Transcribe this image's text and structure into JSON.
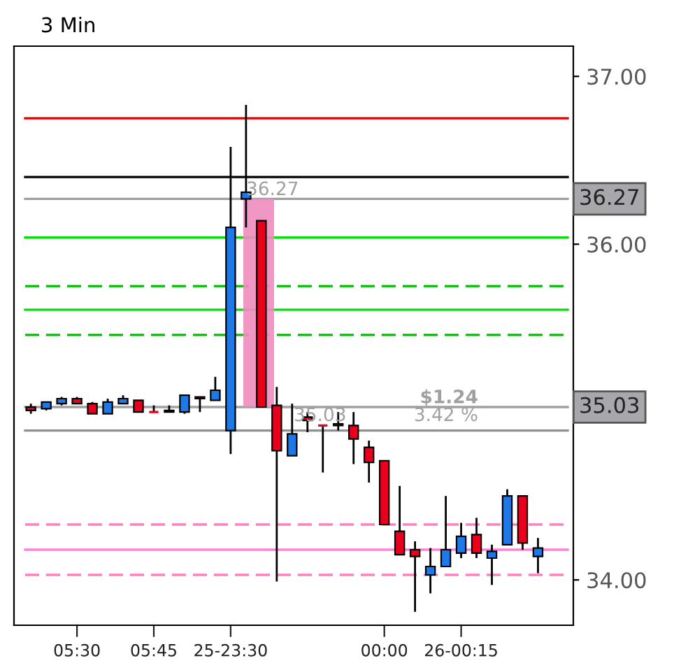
{
  "chart_data": {
    "type": "candlestick",
    "title": "3 Min",
    "categories": [
      null,
      null,
      null,
      "05:30",
      null,
      null,
      null,
      null,
      "05:45",
      null,
      null,
      null,
      null,
      "25-23:30",
      null,
      null,
      null,
      null,
      null,
      null,
      null,
      null,
      null,
      "00:00",
      null,
      null,
      null,
      null,
      "26-00:15",
      null,
      null,
      null,
      null,
      null
    ],
    "ohlc": [
      [
        35.03,
        35.05,
        34.99,
        35.01
      ],
      [
        35.02,
        35.06,
        35.01,
        35.06
      ],
      [
        35.05,
        35.09,
        35.04,
        35.08
      ],
      [
        35.08,
        35.09,
        35.05,
        35.05
      ],
      [
        35.05,
        35.06,
        34.99,
        34.99
      ],
      [
        34.99,
        35.08,
        34.99,
        35.06
      ],
      [
        35.05,
        35.1,
        35.05,
        35.08
      ],
      [
        35.07,
        35.07,
        35.0,
        35.0
      ],
      [
        35.0,
        35.04,
        35.0,
        35.0
      ],
      [
        35.01,
        35.04,
        35.0,
        35.0
      ],
      [
        35.0,
        35.1,
        34.99,
        35.1
      ],
      [
        35.09,
        35.09,
        35.0,
        35.08
      ],
      [
        35.07,
        35.21,
        35.07,
        35.13
      ],
      [
        34.89,
        36.58,
        34.75,
        36.1
      ],
      [
        36.27,
        36.83,
        36.1,
        36.31
      ],
      [
        36.14,
        36.14,
        35.03,
        35.03
      ],
      [
        35.04,
        35.15,
        33.99,
        34.77
      ],
      [
        34.74,
        35.05,
        34.74,
        34.87
      ],
      [
        34.97,
        35.0,
        34.88,
        34.95
      ],
      [
        34.92,
        34.92,
        34.64,
        34.92
      ],
      [
        34.92,
        35.0,
        34.89,
        34.93
      ],
      [
        34.92,
        35.0,
        34.69,
        34.84
      ],
      [
        34.79,
        34.83,
        34.58,
        34.7
      ],
      [
        34.71,
        34.71,
        34.33,
        34.33
      ],
      [
        34.29,
        34.56,
        34.15,
        34.15
      ],
      [
        34.18,
        34.23,
        33.81,
        34.14
      ],
      [
        34.03,
        34.19,
        33.92,
        34.08
      ],
      [
        34.08,
        34.5,
        34.08,
        34.18
      ],
      [
        34.16,
        34.34,
        34.13,
        34.26
      ],
      [
        34.27,
        34.37,
        34.13,
        34.16
      ],
      [
        34.13,
        34.21,
        33.97,
        34.17
      ],
      [
        34.21,
        34.54,
        34.21,
        34.5
      ],
      [
        34.5,
        34.5,
        34.18,
        34.22
      ],
      [
        34.14,
        34.25,
        34.04,
        34.19
      ]
    ],
    "colors": [
      "#e8001c",
      "#1e78e6",
      "#1e78e6",
      "#e8001c",
      "#e8001c",
      "#1e78e6",
      "#1e78e6",
      "#e8001c",
      "#e8001c",
      "#e8001c",
      "#1e78e6",
      "#e8001c",
      "#1e78e6",
      "#1e78e6",
      "#1e78e6",
      "#e8001c",
      "#e8001c",
      "#1e78e6",
      "#e8001c",
      "#e8001c",
      "#1e78e6",
      "#e8001c",
      "#e8001c",
      "#e8001c",
      "#e8001c",
      "#e8001c",
      "#1e78e6",
      "#1e78e6",
      "#1e78e6",
      "#e8001c",
      "#1e78e6",
      "#1e78e6",
      "#e8001c",
      "#1e78e6"
    ],
    "ylim": [
      33.73,
      37.18
    ],
    "yticks": [
      {
        "value": 37,
        "label": "37.00"
      },
      {
        "value": 36,
        "label": "36.00"
      },
      {
        "value": 34,
        "label": "34.00"
      }
    ],
    "ref_lines": [
      {
        "axis": "y",
        "value": 36.75,
        "color": "#e00000",
        "line_style": "solid"
      },
      {
        "axis": "y",
        "value": 36.4,
        "color": "#000000",
        "line_style": "solid"
      },
      {
        "axis": "y",
        "value": 36.27,
        "label": "36.27",
        "color": "#a0a0a0",
        "line_style": "solid"
      },
      {
        "axis": "y",
        "value": 36.04,
        "color": "#00e000",
        "line_style": "solid"
      },
      {
        "axis": "y",
        "value": 35.75,
        "color": "#00c000",
        "line_style": "dashed"
      },
      {
        "axis": "y",
        "value": 35.61,
        "color": "#00e000",
        "line_style": "solid"
      },
      {
        "axis": "y",
        "value": 35.46,
        "color": "#00c000",
        "line_style": "dashed"
      },
      {
        "axis": "y",
        "value": 35.03,
        "label": "35.03",
        "color": "#a0a0a0",
        "line_style": "solid"
      },
      {
        "axis": "y",
        "value": 34.89,
        "color": "#909090",
        "line_style": "solid"
      },
      {
        "axis": "y",
        "value": 34.33,
        "color": "#ff80c0",
        "line_style": "dashed"
      },
      {
        "axis": "y",
        "value": 34.18,
        "color": "#ff80d8",
        "line_style": "solid"
      },
      {
        "axis": "y",
        "value": 34.03,
        "color": "#ff80c0",
        "line_style": "dashed"
      }
    ],
    "bands": [
      {
        "axis": "y",
        "from": 35.03,
        "to": 36.27,
        "color": "#f08cc0"
      }
    ],
    "annotations": [
      {
        "text": "36.27",
        "y": 36.27
      },
      {
        "text": "35.03",
        "y": 35.03
      },
      {
        "text": "$1.24",
        "y": 35.03
      },
      {
        "text": "3.42 %",
        "y": 35.03
      }
    ],
    "grid": false
  }
}
